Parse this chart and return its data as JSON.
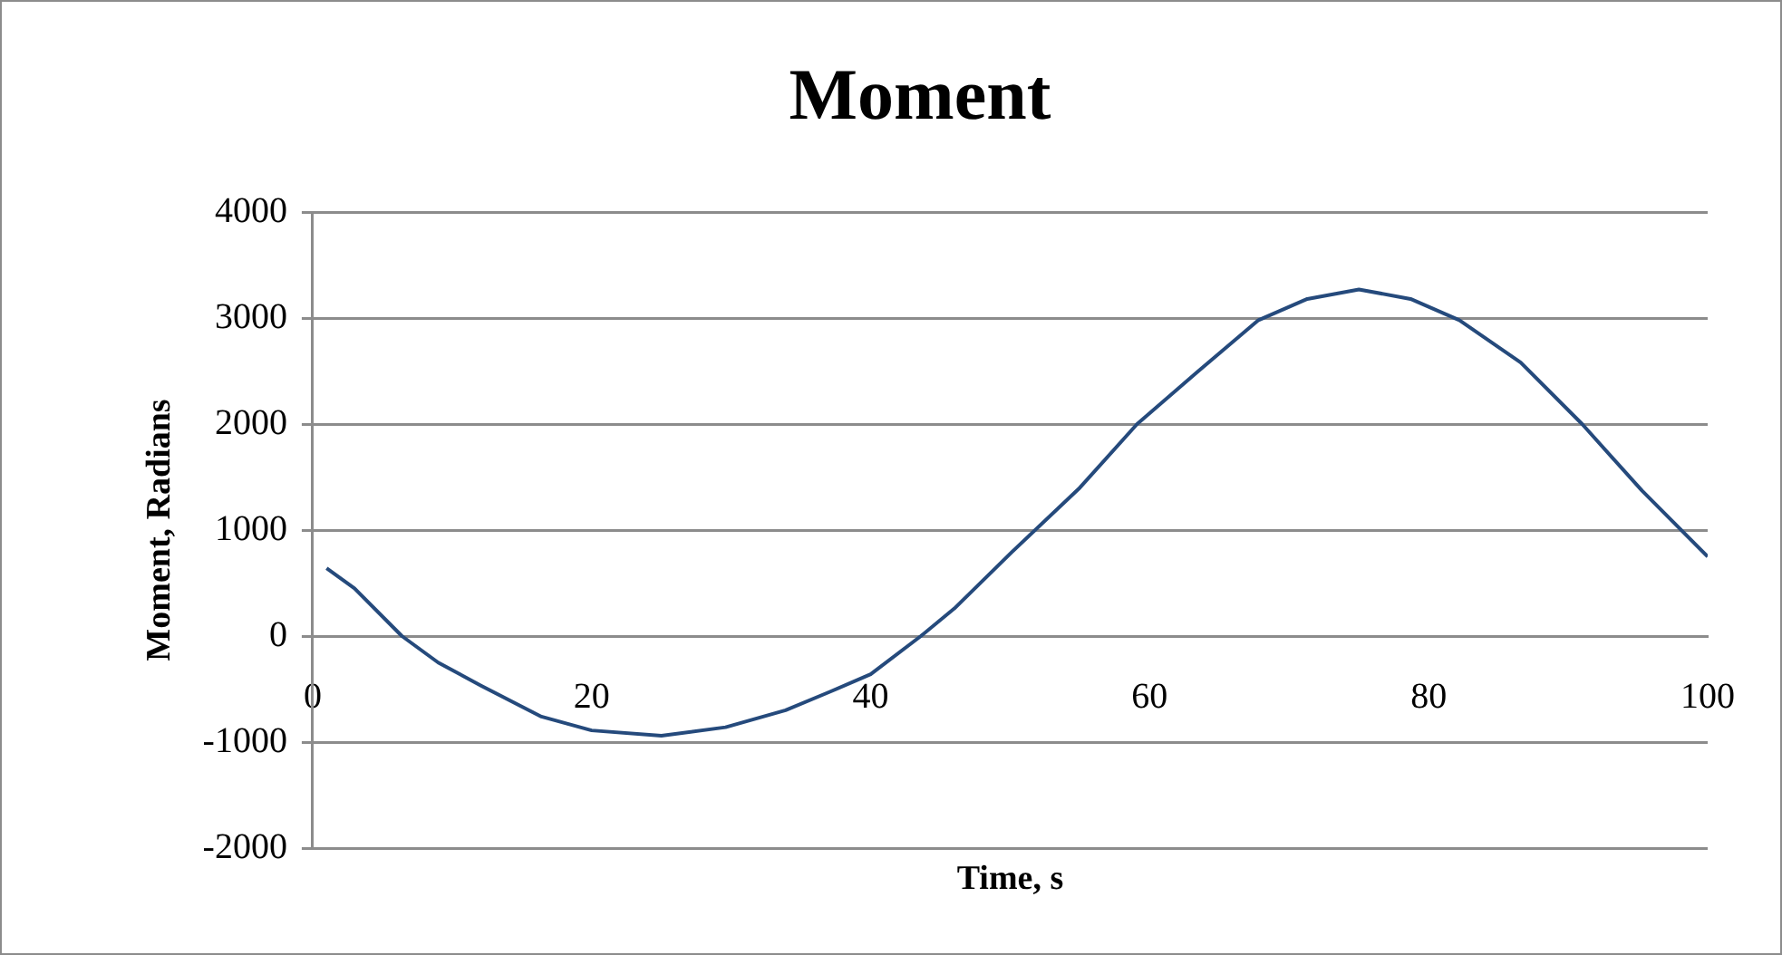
{
  "chart_data": {
    "type": "line",
    "title": "Moment",
    "xlabel": "Time, s",
    "ylabel": "Moment, Radians",
    "x": [
      1,
      3,
      6.4,
      9,
      12.1,
      16.4,
      20,
      25,
      29.6,
      33.9,
      37,
      40,
      43.6,
      46,
      50.1,
      55,
      59.1,
      63.4,
      67.8,
      71.3,
      75,
      78.7,
      82.2,
      86.6,
      91,
      95.3,
      100
    ],
    "series": [
      {
        "color": "#254a7c",
        "values": [
          640,
          450,
          0,
          -250,
          -470,
          -760,
          -890,
          -940,
          -860,
          -700,
          -530,
          -360,
          0,
          260,
          790,
          1400,
          2000,
          2490,
          2980,
          3180,
          3270,
          3180,
          2980,
          2580,
          2000,
          1370,
          750
        ]
      }
    ],
    "xlim": [
      0,
      100
    ],
    "xticks": [
      0,
      20,
      40,
      60,
      80,
      100
    ],
    "ylim": [
      -2000,
      4000
    ],
    "yticks": [
      -2000,
      -1000,
      0,
      1000,
      2000,
      3000,
      4000
    ],
    "grid": "y",
    "legend": false,
    "marker": "none",
    "line_style": "solid"
  }
}
